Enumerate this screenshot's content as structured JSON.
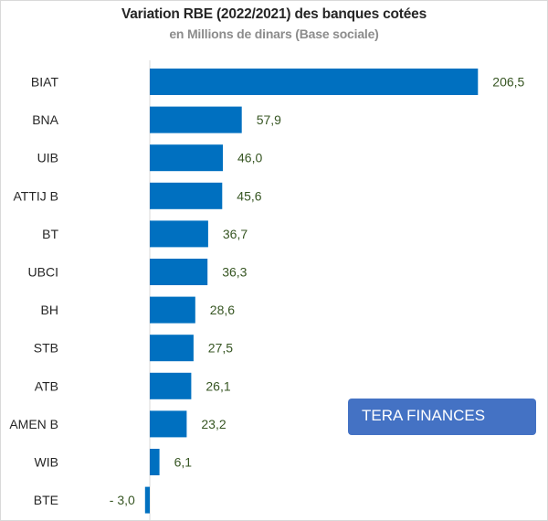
{
  "chart_data": {
    "type": "bar",
    "orientation": "horizontal",
    "title": "Variation RBE (2022/2021) des banques cotées",
    "subtitle": "en Millions de dinars (Base sociale)",
    "categories": [
      "BIAT",
      "BNA",
      "UIB",
      "ATTIJ B",
      "BT",
      "UBCI",
      "BH",
      "STB",
      "ATB",
      "AMEN B",
      "WIB",
      "BTE"
    ],
    "values": [
      206.5,
      57.9,
      46.0,
      45.6,
      36.7,
      36.3,
      28.6,
      27.5,
      26.1,
      23.2,
      6.1,
      -3.0
    ],
    "value_labels": [
      "206,5",
      "57,9",
      "46,0",
      "45,6",
      "36,7",
      "36,3",
      "28,6",
      "27,5",
      "26,1",
      "23,2",
      "6,1",
      "- 3,0"
    ],
    "xlim": [
      -3.0,
      206.5
    ],
    "bar_color": "#0070c0",
    "value_label_color": "#375623",
    "grid": false,
    "legend": "none"
  },
  "badge": {
    "text": "TERA FINANCES",
    "color": "#4472c4"
  }
}
